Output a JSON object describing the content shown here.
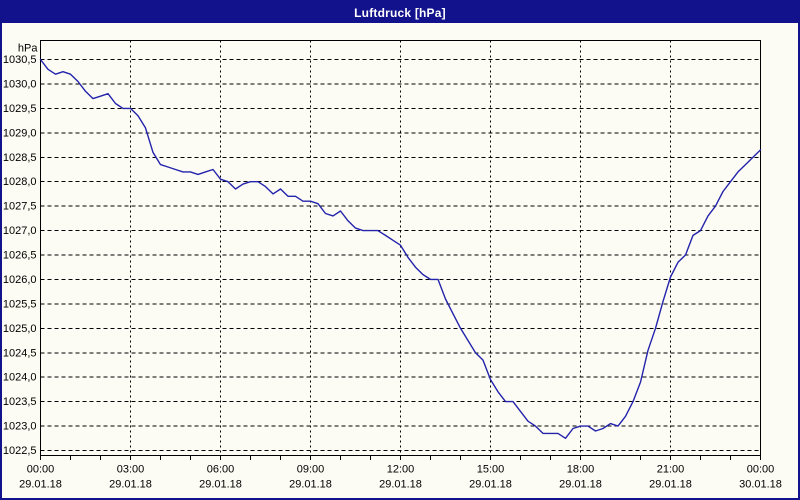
{
  "window": {
    "title": "Luftdruck [hPa]"
  },
  "colors": {
    "titlebar_bg": "#12128C",
    "titlebar_text": "#FFFFFF",
    "window_border": "#12128C",
    "background": "#FCFCF4",
    "grid": "#000000",
    "axis": "#000000",
    "text": "#000000",
    "line": "#2323AC"
  },
  "chart_data": {
    "type": "line",
    "title": "Luftdruck [hPa]",
    "ylabel": "hPa",
    "xlabel": "",
    "grid": true,
    "legend": "none",
    "ylim": [
      1022.5,
      1030.5
    ],
    "xlim_hours": [
      0,
      24
    ],
    "y_ticks": [
      {
        "value": 1030.5,
        "label": "1030,5"
      },
      {
        "value": 1030.0,
        "label": "1030,0"
      },
      {
        "value": 1029.5,
        "label": "1029,5"
      },
      {
        "value": 1029.0,
        "label": "1029,0"
      },
      {
        "value": 1028.5,
        "label": "1028,5"
      },
      {
        "value": 1028.0,
        "label": "1028,0"
      },
      {
        "value": 1027.5,
        "label": "1027,5"
      },
      {
        "value": 1027.0,
        "label": "1027,0"
      },
      {
        "value": 1026.5,
        "label": "1026,5"
      },
      {
        "value": 1026.0,
        "label": "1026,0"
      },
      {
        "value": 1025.5,
        "label": "1025,5"
      },
      {
        "value": 1025.0,
        "label": "1025,0"
      },
      {
        "value": 1024.5,
        "label": "1024,5"
      },
      {
        "value": 1024.0,
        "label": "1024,0"
      },
      {
        "value": 1023.5,
        "label": "1023,5"
      },
      {
        "value": 1023.0,
        "label": "1023,0"
      },
      {
        "value": 1022.5,
        "label": "1022,5"
      }
    ],
    "x_ticks": [
      {
        "hour": 0,
        "time": "00:00",
        "date": "29.01.18"
      },
      {
        "hour": 3,
        "time": "03:00",
        "date": "29.01.18"
      },
      {
        "hour": 6,
        "time": "06:00",
        "date": "29.01.18"
      },
      {
        "hour": 9,
        "time": "09:00",
        "date": "29.01.18"
      },
      {
        "hour": 12,
        "time": "12:00",
        "date": "29.01.18"
      },
      {
        "hour": 15,
        "time": "15:00",
        "date": "29.01.18"
      },
      {
        "hour": 18,
        "time": "18:00",
        "date": "29.01.18"
      },
      {
        "hour": 21,
        "time": "21:00",
        "date": "29.01.18"
      },
      {
        "hour": 24,
        "time": "00:00",
        "date": "30.01.18"
      }
    ],
    "minor_x_tick_every_hours": 1,
    "series": [
      {
        "name": "Luftdruck",
        "color": "#2323AC",
        "x_hours": [
          0,
          0.25,
          0.5,
          0.75,
          1,
          1.25,
          1.5,
          1.75,
          2,
          2.25,
          2.5,
          2.75,
          3,
          3.25,
          3.5,
          3.75,
          4,
          4.25,
          4.5,
          4.75,
          5,
          5.25,
          5.5,
          5.75,
          6,
          6.25,
          6.5,
          6.75,
          7,
          7.25,
          7.5,
          7.75,
          8,
          8.25,
          8.5,
          8.75,
          9,
          9.25,
          9.5,
          9.75,
          10,
          10.25,
          10.5,
          10.75,
          11,
          11.25,
          11.5,
          11.75,
          12,
          12.25,
          12.5,
          12.75,
          13,
          13.25,
          13.5,
          13.75,
          14,
          14.25,
          14.5,
          14.75,
          15,
          15.25,
          15.5,
          15.75,
          16,
          16.25,
          16.5,
          16.75,
          17,
          17.25,
          17.5,
          17.75,
          18,
          18.25,
          18.5,
          18.75,
          19,
          19.25,
          19.5,
          19.75,
          20,
          20.25,
          20.5,
          20.75,
          21,
          21.25,
          21.5,
          21.75,
          22,
          22.25,
          22.5,
          22.75,
          23,
          23.25,
          23.5,
          23.75,
          24
        ],
        "y_hpa": [
          1030.5,
          1030.3,
          1030.2,
          1030.25,
          1030.2,
          1030.05,
          1029.85,
          1029.7,
          1029.75,
          1029.8,
          1029.6,
          1029.5,
          1029.5,
          1029.35,
          1029.1,
          1028.6,
          1028.35,
          1028.3,
          1028.25,
          1028.2,
          1028.2,
          1028.15,
          1028.2,
          1028.25,
          1028.05,
          1028.0,
          1027.85,
          1027.95,
          1028.0,
          1028.0,
          1027.9,
          1027.75,
          1027.85,
          1027.7,
          1027.7,
          1027.6,
          1027.6,
          1027.55,
          1027.35,
          1027.3,
          1027.4,
          1027.2,
          1027.05,
          1027.0,
          1027.0,
          1027.0,
          1026.9,
          1026.8,
          1026.7,
          1026.45,
          1026.25,
          1026.1,
          1026.0,
          1026.0,
          1025.6,
          1025.3,
          1025.0,
          1024.75,
          1024.5,
          1024.35,
          1023.95,
          1023.7,
          1023.5,
          1023.5,
          1023.3,
          1023.1,
          1023.0,
          1022.85,
          1022.85,
          1022.85,
          1022.75,
          1022.95,
          1023.0,
          1023.0,
          1022.9,
          1022.95,
          1023.05,
          1023.0,
          1023.2,
          1023.5,
          1023.9,
          1024.55,
          1025.0,
          1025.55,
          1026.05,
          1026.35,
          1026.5,
          1026.9,
          1027.0,
          1027.3,
          1027.5,
          1027.8,
          1028.0,
          1028.2,
          1028.35,
          1028.5,
          1028.65
        ]
      }
    ]
  }
}
